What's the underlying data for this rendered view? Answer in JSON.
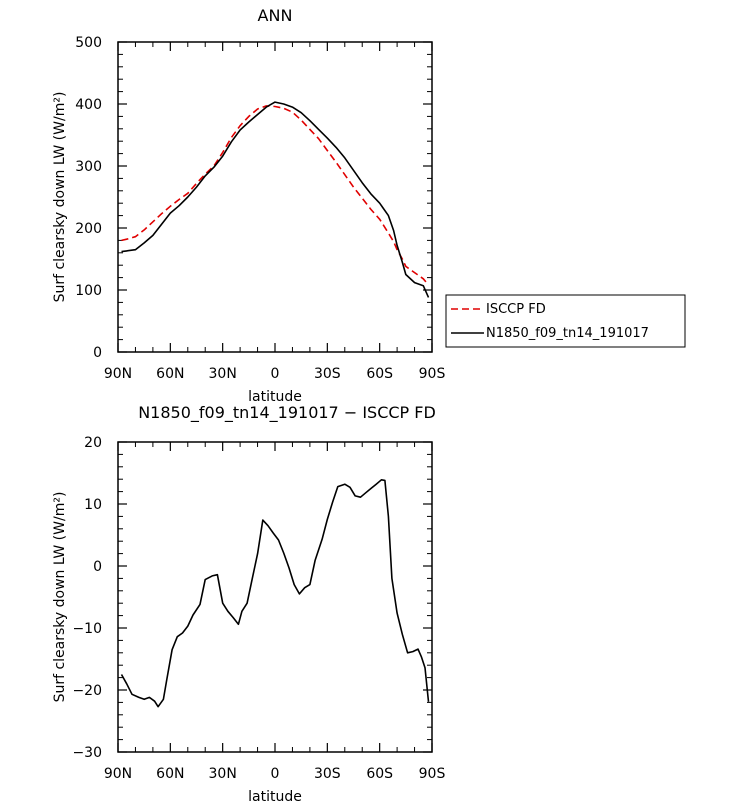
{
  "chart_data": [
    {
      "type": "line",
      "title": "ANN",
      "xlabel": "latitude",
      "ylabel": "Surf clearsky down LW (W/m²)",
      "xlim": [
        90,
        -90
      ],
      "ylim": [
        0,
        500
      ],
      "x_ticks": [
        90,
        60,
        30,
        0,
        -30,
        -60,
        -90
      ],
      "x_tick_labels": [
        "90N",
        "60N",
        "30N",
        "0",
        "30S",
        "60S",
        "90S"
      ],
      "y_ticks": [
        0,
        100,
        200,
        300,
        400,
        500
      ],
      "y_tick_labels": [
        "0",
        "100",
        "200",
        "300",
        "400",
        "500"
      ],
      "legend_position": "right",
      "series": [
        {
          "name": "ISCCP FD",
          "color": "#e00000",
          "dash": "dashed",
          "x": [
            88,
            85,
            80,
            75,
            70,
            65,
            60,
            55,
            50,
            45,
            40,
            35,
            30,
            25,
            20,
            15,
            10,
            5,
            0,
            -5,
            -10,
            -15,
            -20,
            -25,
            -30,
            -35,
            -40,
            -45,
            -50,
            -55,
            -60,
            -65,
            -68,
            -70,
            -73,
            -75,
            -80,
            -85,
            -88
          ],
          "values": [
            180,
            182,
            186,
            197,
            210,
            223,
            235,
            246,
            256,
            272,
            287,
            300,
            322,
            346,
            365,
            380,
            392,
            397,
            396,
            393,
            387,
            374,
            359,
            344,
            325,
            306,
            286,
            266,
            248,
            230,
            214,
            192,
            178,
            165,
            150,
            138,
            128,
            118,
            108
          ]
        },
        {
          "name": "N1850_f09_tn14_191017",
          "color": "#000000",
          "dash": "solid",
          "x": [
            88,
            85,
            80,
            75,
            70,
            65,
            60,
            55,
            50,
            45,
            40,
            35,
            30,
            25,
            20,
            15,
            10,
            5,
            0,
            -5,
            -10,
            -15,
            -20,
            -25,
            -30,
            -35,
            -40,
            -45,
            -50,
            -55,
            -60,
            -65,
            -68,
            -70,
            -73,
            -75,
            -80,
            -85,
            -88
          ],
          "values": [
            162,
            163,
            165,
            176,
            188,
            206,
            224,
            236,
            250,
            266,
            284,
            298,
            316,
            339,
            358,
            371,
            383,
            395,
            403,
            400,
            395,
            386,
            373,
            359,
            345,
            330,
            313,
            293,
            273,
            255,
            240,
            220,
            196,
            172,
            145,
            125,
            112,
            107,
            88
          ]
        }
      ]
    },
    {
      "type": "line",
      "title": "N1850_f09_tn14_191017 − ISCCP FD",
      "xlabel": "latitude",
      "ylabel": "Surf clearsky down LW (W/m²)",
      "xlim": [
        90,
        -90
      ],
      "ylim": [
        -30,
        20
      ],
      "x_ticks": [
        90,
        60,
        30,
        0,
        -30,
        -60,
        -90
      ],
      "x_tick_labels": [
        "90N",
        "60N",
        "30N",
        "0",
        "30S",
        "60S",
        "90S"
      ],
      "y_ticks": [
        -30,
        -20,
        -10,
        0,
        10,
        20
      ],
      "y_tick_labels": [
        "−30",
        "−20",
        "−10",
        "0",
        "10",
        "20"
      ],
      "series": [
        {
          "color": "#000000",
          "dash": "solid",
          "x": [
            88,
            85,
            82,
            78,
            75,
            72,
            69,
            67,
            64,
            62,
            59,
            56,
            53,
            50,
            47,
            43,
            40,
            36,
            33,
            30,
            27,
            24,
            21,
            19,
            16,
            13,
            10,
            7,
            4,
            1,
            -2,
            -5,
            -8,
            -11,
            -14,
            -17,
            -20,
            -23,
            -27,
            -30,
            -33,
            -36,
            -40,
            -43,
            -46,
            -49,
            -52,
            -55,
            -58,
            -61,
            -63,
            -65,
            -67,
            -70,
            -73,
            -76,
            -79,
            -82,
            -84,
            -86,
            -88
          ],
          "values": [
            -17.5,
            -19,
            -20.7,
            -21.2,
            -21.5,
            -21.2,
            -21.8,
            -22.7,
            -21.5,
            -18.3,
            -13.5,
            -11.4,
            -10.8,
            -9.7,
            -7.9,
            -6.2,
            -2.2,
            -1.6,
            -1.4,
            -6,
            -7.3,
            -8.3,
            -9.4,
            -7.3,
            -6,
            -2,
            2,
            7.4,
            6.5,
            5.3,
            4.2,
            2.1,
            -0.3,
            -3,
            -4.5,
            -3.5,
            -3,
            0.9,
            4.3,
            7.5,
            10.3,
            12.8,
            13.2,
            12.7,
            11.3,
            11.1,
            11.8,
            12.5,
            13.2,
            13.9,
            13.8,
            8,
            -2,
            -7.6,
            -11,
            -14,
            -13.8,
            -13.4,
            -14.7,
            -16.4,
            -21.9
          ]
        }
      ]
    }
  ]
}
